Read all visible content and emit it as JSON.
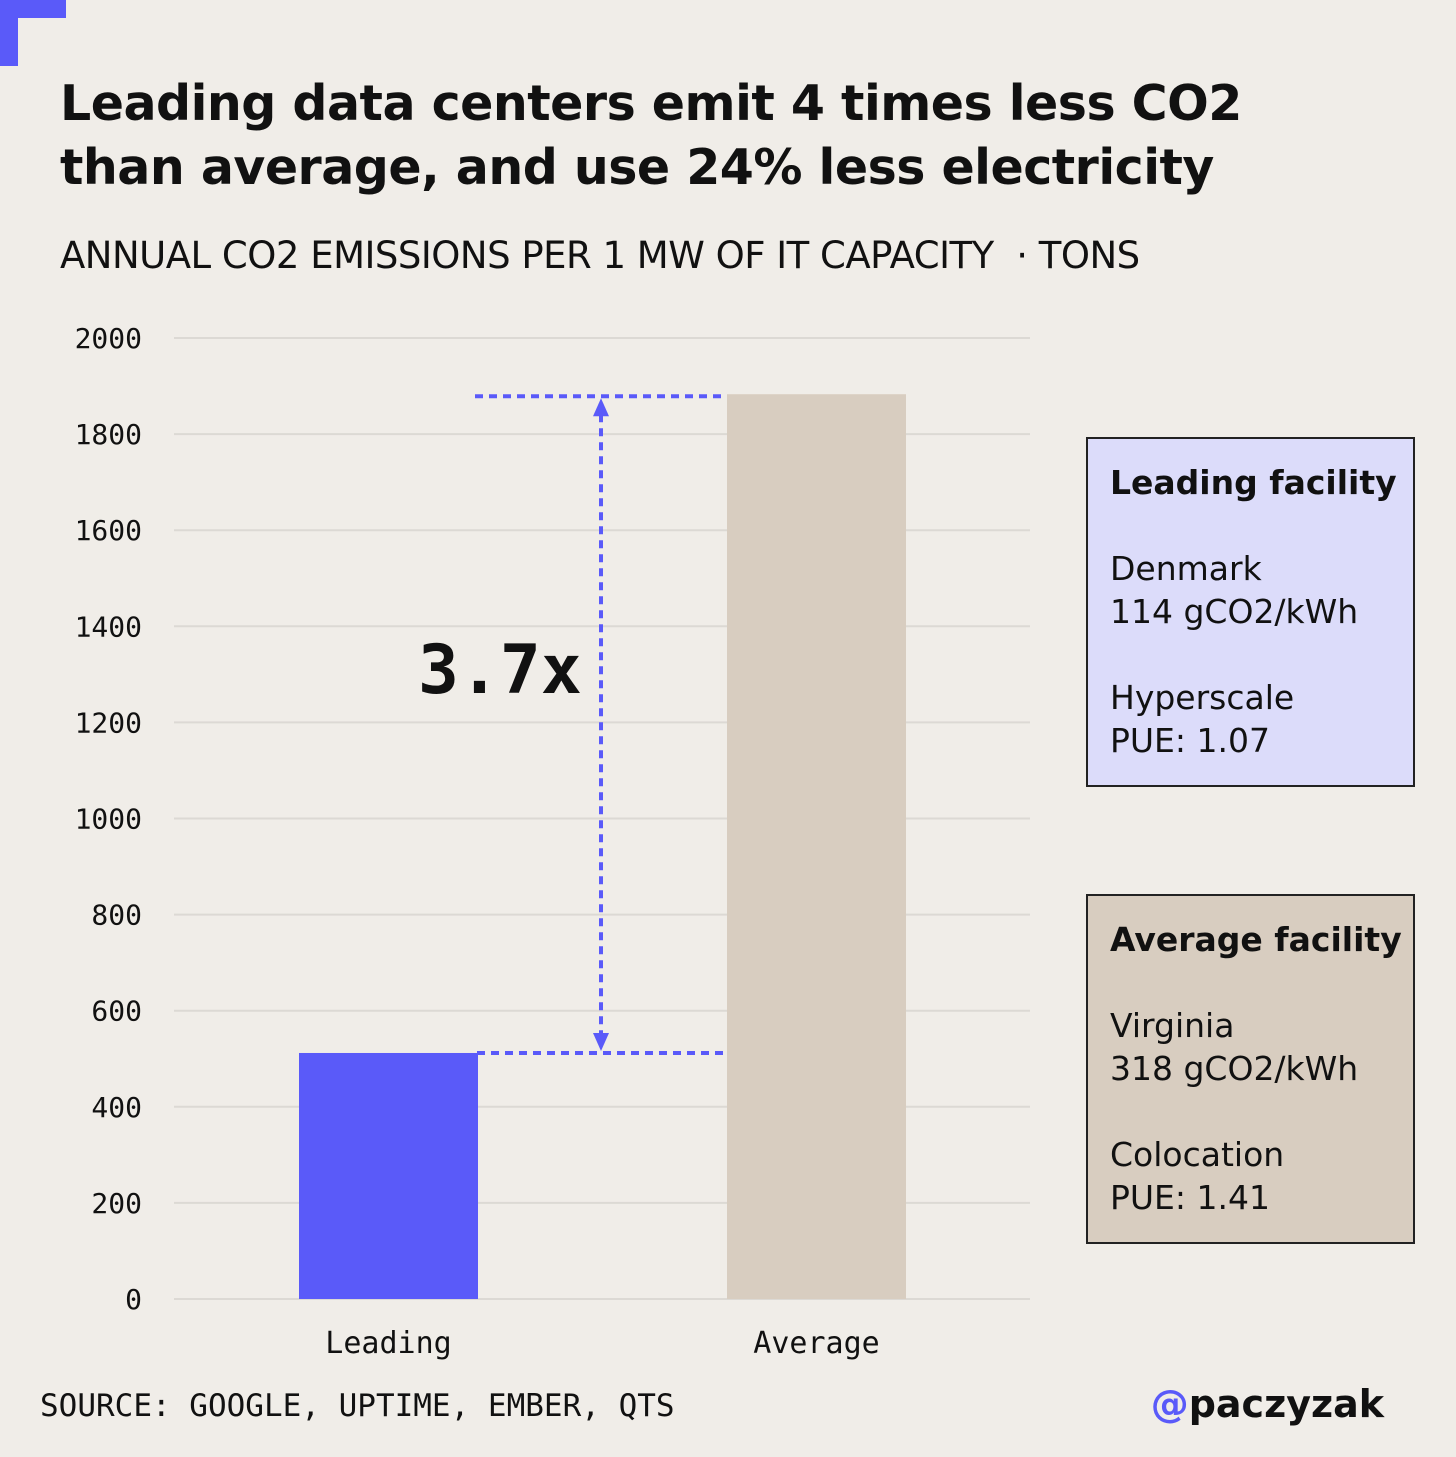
{
  "title": "Leading data centers emit 4 times less CO2 than average, and use 24% less electricity",
  "subtitle": "ANNUAL CO2 EMISSIONS PER 1 MW OF IT CAPACITY  · TONS",
  "colors": {
    "accent": "#5a5af9",
    "average": "#d8cdc0",
    "background": "#f0ede8",
    "leading_box": "#dcdcfa"
  },
  "chart_data": {
    "type": "bar",
    "title": "ANNUAL CO2 EMISSIONS PER 1 MW OF IT CAPACITY · TONS",
    "categories": [
      "Leading",
      "Average"
    ],
    "values": [
      512,
      1883
    ],
    "ylim": [
      0,
      2000
    ],
    "yticks": [
      0,
      200,
      400,
      600,
      800,
      1000,
      1200,
      1400,
      1600,
      1800,
      2000
    ],
    "grid": true,
    "annotation": "3.7x"
  },
  "boxes": {
    "leading": {
      "heading": "Leading facility",
      "location": "Denmark",
      "intensity": "114 gCO2/kWh",
      "type": "Hyperscale",
      "pue": "PUE: 1.07"
    },
    "average": {
      "heading": "Average facility",
      "location": "Virginia",
      "intensity": "318 gCO2/kWh",
      "type": "Colocation",
      "pue": "PUE: 1.41"
    }
  },
  "footer": {
    "source": "SOURCE: GOOGLE, UPTIME, EMBER, QTS",
    "handle_at": "@",
    "handle": "paczyzak"
  }
}
